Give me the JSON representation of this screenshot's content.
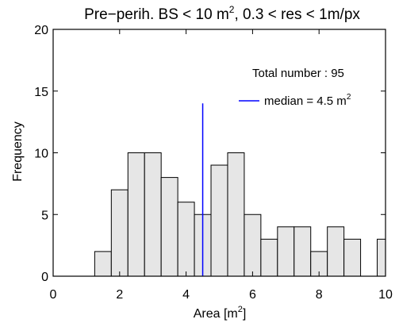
{
  "chart_data": {
    "type": "bar",
    "title": "Pre−perih. BS < 10 m², 0.3 < res < 1m/px",
    "title_main": "Pre−perih. BS < 10 m",
    "title_sup": "2",
    "title_rest": ", 0.3 < res < 1m/px",
    "xlabel": "Area [m²]",
    "xlabel_main": "Area [m",
    "xlabel_sup": "2",
    "xlabel_rest": "]",
    "ylabel": "Frequency",
    "xlim": [
      0,
      10
    ],
    "ylim": [
      0,
      20
    ],
    "xticks": [
      0,
      2,
      4,
      6,
      8,
      10
    ],
    "yticks": [
      0,
      5,
      10,
      15,
      20
    ],
    "bin_width": 0.5,
    "bins": [
      {
        "x0": 1.25,
        "x1": 1.75,
        "value": 2
      },
      {
        "x0": 1.75,
        "x1": 2.25,
        "value": 7
      },
      {
        "x0": 2.25,
        "x1": 2.75,
        "value": 10
      },
      {
        "x0": 2.75,
        "x1": 3.25,
        "value": 10
      },
      {
        "x0": 3.25,
        "x1": 3.75,
        "value": 8
      },
      {
        "x0": 3.75,
        "x1": 4.25,
        "value": 6
      },
      {
        "x0": 4.25,
        "x1": 4.75,
        "value": 5
      },
      {
        "x0": 4.75,
        "x1": 5.25,
        "value": 9
      },
      {
        "x0": 5.25,
        "x1": 5.75,
        "value": 10
      },
      {
        "x0": 5.75,
        "x1": 6.25,
        "value": 5
      },
      {
        "x0": 6.25,
        "x1": 6.75,
        "value": 3
      },
      {
        "x0": 6.75,
        "x1": 7.25,
        "value": 4
      },
      {
        "x0": 7.25,
        "x1": 7.75,
        "value": 4
      },
      {
        "x0": 7.75,
        "x1": 8.25,
        "value": 2
      },
      {
        "x0": 8.25,
        "x1": 8.75,
        "value": 4
      },
      {
        "x0": 8.75,
        "x1": 9.25,
        "value": 3
      },
      {
        "x0": 9.25,
        "x1": 9.75,
        "value": 0
      },
      {
        "x0": 9.75,
        "x1": 10.25,
        "value": 3
      }
    ],
    "median": {
      "x": 4.5,
      "y_top": 14,
      "color": "#0000ff"
    },
    "annotations": {
      "total_label": "Total number : 95",
      "median_label": "median = 4.5 m²",
      "median_label_main": "median = 4.5 m",
      "median_label_sup": "2"
    },
    "bar_fill": "#e6e6e6",
    "bar_stroke": "#000000",
    "legend_position": "top-right",
    "grid": false
  }
}
